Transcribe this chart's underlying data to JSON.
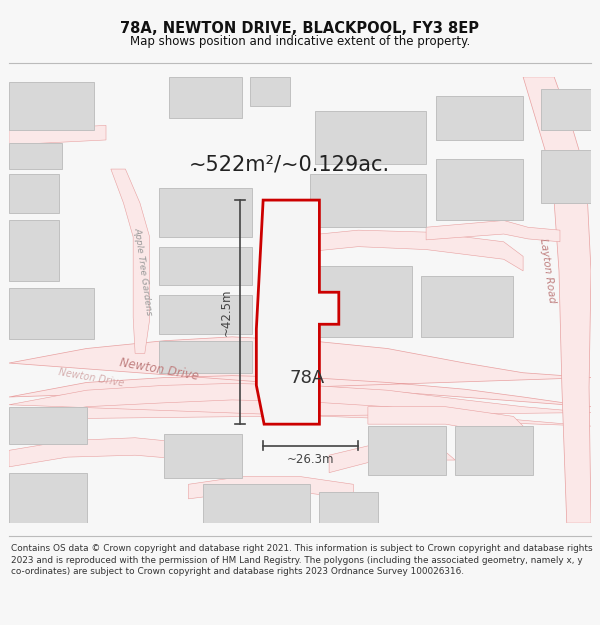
{
  "title_line1": "78A, NEWTON DRIVE, BLACKPOOL, FY3 8EP",
  "title_line2": "Map shows position and indicative extent of the property.",
  "area_text": "~522m²/~0.129ac.",
  "label_78A": "78A",
  "dim_width": "~26.3m",
  "dim_height": "~42.5m",
  "footer_text": "Contains OS data © Crown copyright and database right 2021. This information is subject to Crown copyright and database rights 2023 and is reproduced with the permission of HM Land Registry. The polygons (including the associated geometry, namely x, y co-ordinates) are subject to Crown copyright and database rights 2023 Ordnance Survey 100026316.",
  "bg_color": "#f7f7f7",
  "map_bg": "#ffffff",
  "road_stroke": "#e8a0a0",
  "road_fill": "#fbe8e8",
  "building_fill": "#d8d8d8",
  "building_edge": "#c0c0c0",
  "highlight_fill": "#f5f5f5",
  "highlight_edge": "#cc0000",
  "road_label_color": "#c08080",
  "street_label_color": "#999999",
  "dim_line_color": "#444444",
  "title_color": "#111111",
  "footer_color": "#333333"
}
